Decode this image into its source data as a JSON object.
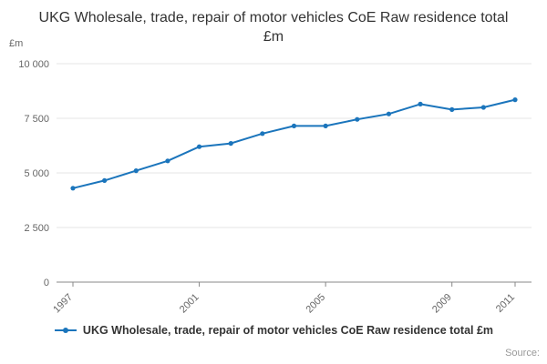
{
  "title": "UKG Wholesale, trade, repair of motor vehicles CoE Raw residence total £m",
  "y_unit_label": "£m",
  "source_label": "Source:",
  "legend": {
    "label": "UKG Wholesale, trade, repair of motor vehicles CoE Raw residence total £m"
  },
  "colors": {
    "line": "#1b75bc",
    "grid": "#e6e6e6",
    "axis": "#888888",
    "text": "#666666",
    "title": "#333333"
  },
  "chart_data": {
    "type": "line",
    "title": "UKG Wholesale, trade, repair of motor vehicles CoE Raw residence total £m",
    "xlabel": "",
    "ylabel": "£m",
    "ylim": [
      0,
      10000
    ],
    "grid": true,
    "legend_position": "bottom",
    "x": [
      1997,
      1998,
      1999,
      2000,
      2001,
      2002,
      2003,
      2004,
      2005,
      2006,
      2007,
      2008,
      2009,
      2010,
      2011
    ],
    "series": [
      {
        "name": "UKG Wholesale, trade, repair of motor vehicles CoE Raw residence total £m",
        "values": [
          4300,
          4650,
          5100,
          5550,
          6200,
          6350,
          6800,
          7150,
          7150,
          7450,
          7700,
          8150,
          7900,
          8000,
          8350
        ]
      }
    ],
    "yticks": [
      {
        "value": 0,
        "label": "0"
      },
      {
        "value": 2500,
        "label": "2 500"
      },
      {
        "value": 5000,
        "label": "5 000"
      },
      {
        "value": 7500,
        "label": "7 500"
      },
      {
        "value": 10000,
        "label": "10 000"
      }
    ],
    "xticks_labeled": [
      1997,
      2001,
      2005,
      2009,
      2011
    ]
  }
}
